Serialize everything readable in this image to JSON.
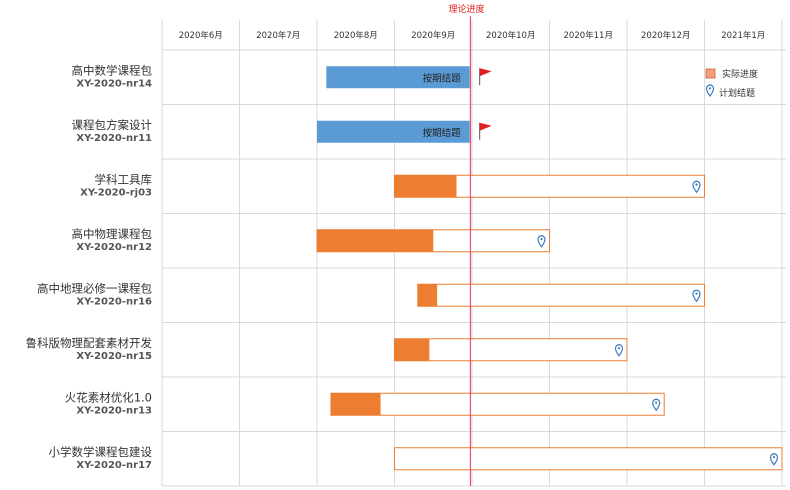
{
  "chart_data": {
    "type": "gantt",
    "title": "",
    "months": [
      "2020年6月",
      "2020年7月",
      "2020年8月",
      "2020年9月",
      "2020年10月",
      "2020年11月",
      "2020年12月",
      "2021年1月"
    ],
    "reference_line": {
      "label": "理论进度",
      "month_pos": 3.98
    },
    "legend": [
      {
        "label": "实际进度",
        "color": "#f0a07a"
      },
      {
        "label": "计划结题",
        "marker": "pin"
      }
    ],
    "rows": [
      {
        "name": "高中数学课程包",
        "code": "XY-2020-nr14",
        "status": "done",
        "start": 2.12,
        "end": 3.97,
        "bar_label": "按期结题"
      },
      {
        "name": "课程包方案设计",
        "code": "XY-2020-nr11",
        "status": "done",
        "start": 2.0,
        "end": 3.97,
        "bar_label": "按期结题"
      },
      {
        "name": "学科工具库",
        "code": "XY-2020-rj03",
        "start": 3.0,
        "progress_end": 3.8,
        "plan_end": 7.0
      },
      {
        "name": "高中物理课程包",
        "code": "XY-2020-nr12",
        "start": 2.0,
        "progress_end": 3.5,
        "plan_end": 5.0
      },
      {
        "name": "高中地理必修一课程包",
        "code": "XY-2020-nr16",
        "start": 3.3,
        "progress_end": 3.55,
        "plan_end": 7.0
      },
      {
        "name": "鲁科版物理配套素材开发",
        "code": "XY-2020-nr15",
        "start": 3.0,
        "progress_end": 3.45,
        "plan_end": 6.0
      },
      {
        "name": "火花素材优化1.0",
        "code": "XY-2020-nr13",
        "start": 2.18,
        "progress_end": 2.82,
        "plan_end": 6.48
      },
      {
        "name": "小学数学课程包建设",
        "code": "XY-2020-nr17",
        "start": 3.0,
        "progress_end": 3.0,
        "plan_end": 8.0
      }
    ],
    "colors": {
      "done": "#5b9bd5",
      "progress": "#ed7d31",
      "plan_border": "#ed7d31",
      "reference": "#e8506a",
      "flag": "#e02020",
      "pin": "#3a7bbf",
      "grid": "#d9d9d9"
    }
  }
}
